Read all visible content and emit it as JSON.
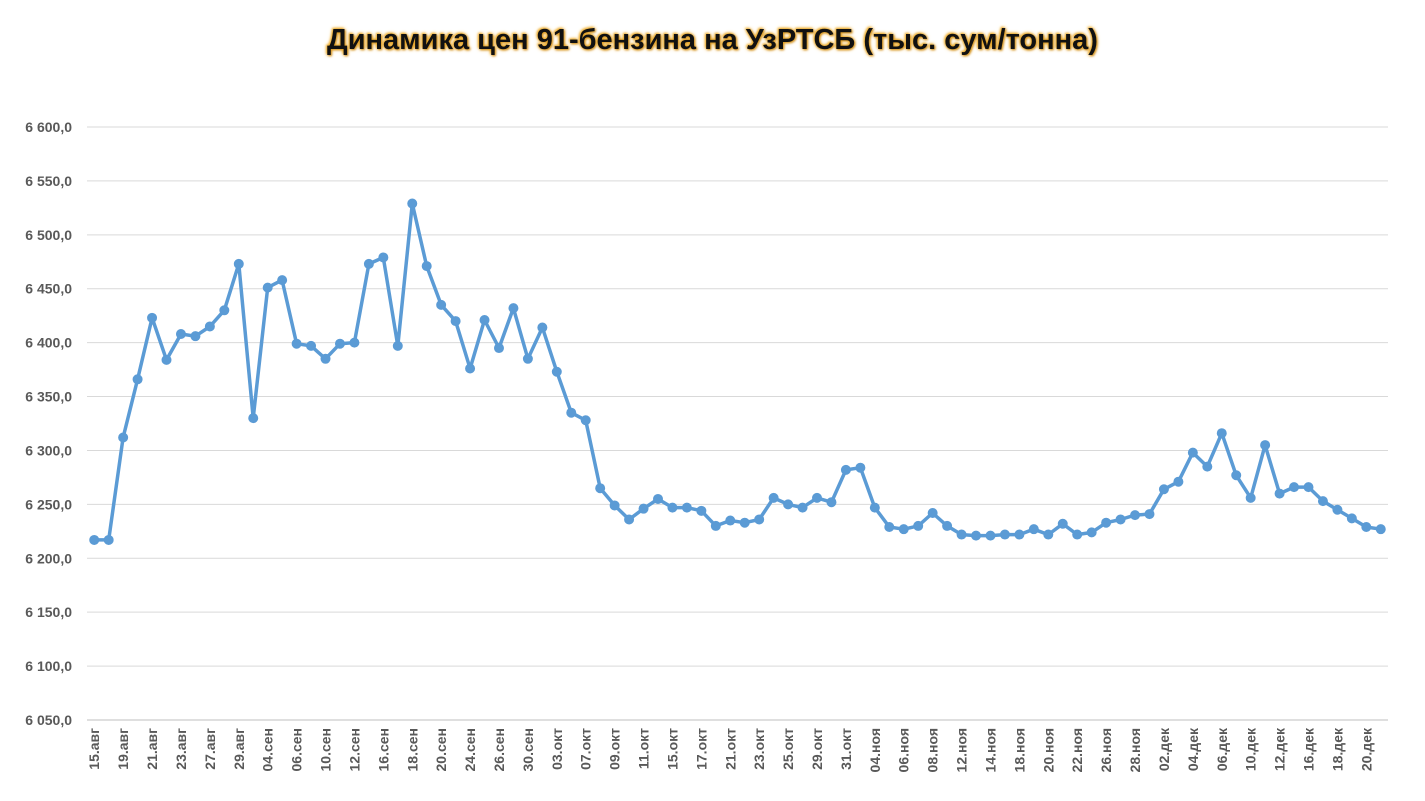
{
  "chart_data": {
    "type": "line",
    "title": "Динамика цен 91-бензина на УзРТСБ (тыс. сум/тонна)",
    "xlabel": "",
    "ylabel": "",
    "ylim": [
      6050,
      6600
    ],
    "yticks": [
      "6 050,0",
      "6 100,0",
      "6 150,0",
      "6 200,0",
      "6 250,0",
      "6 300,0",
      "6 350,0",
      "6 400,0",
      "6 450,0",
      "6 500,0",
      "6 550,0",
      "6 600,0"
    ],
    "grid": true,
    "legend": "none",
    "tick_labels": [
      "15.авг",
      "19.авг",
      "21.авг",
      "23.авг",
      "27.авг",
      "29.авг",
      "04.сен",
      "06.сен",
      "10.сен",
      "12.сен",
      "16.сен",
      "18.сен",
      "20.сен",
      "24.сен",
      "26.сен",
      "30.сен",
      "03.окт",
      "07.окт",
      "09.окт",
      "11.окт",
      "15.окт",
      "17.окт",
      "21.окт",
      "23.окт",
      "25.окт",
      "29.окт",
      "31.окт",
      "04.ноя",
      "06.ноя",
      "08.ноя",
      "12.ноя",
      "14.ноя",
      "18.ноя",
      "20.ноя",
      "22.ноя",
      "26.ноя",
      "28.ноя",
      "02.дек",
      "04.дек",
      "06.дек",
      "10.дек",
      "12.дек",
      "16.дек",
      "18.дек",
      "20.дек"
    ],
    "series": [
      {
        "color": "#5b9bd5",
        "values": [
          6217,
          6217,
          6312,
          6366,
          6423,
          6384,
          6408,
          6406,
          6415,
          6430,
          6473,
          6330,
          6451,
          6458,
          6399,
          6397,
          6385,
          6399,
          6400,
          6473,
          6479,
          6397,
          6529,
          6471,
          6435,
          6420,
          6376,
          6421,
          6395,
          6432,
          6385,
          6414,
          6373,
          6335,
          6328,
          6265,
          6249,
          6236,
          6246,
          6255,
          6247,
          6247,
          6244,
          6230,
          6235,
          6233,
          6236,
          6256,
          6250,
          6247,
          6256,
          6252,
          6282,
          6284,
          6247,
          6229,
          6227,
          6230,
          6242,
          6230,
          6222,
          6221,
          6221,
          6222,
          6222,
          6227,
          6222,
          6232,
          6222,
          6224,
          6233,
          6236,
          6240,
          6241,
          6264,
          6271,
          6298,
          6285,
          6316,
          6277,
          6256,
          6305,
          6260,
          6266,
          6266,
          6253,
          6245,
          6237,
          6229,
          6227
        ]
      }
    ]
  }
}
